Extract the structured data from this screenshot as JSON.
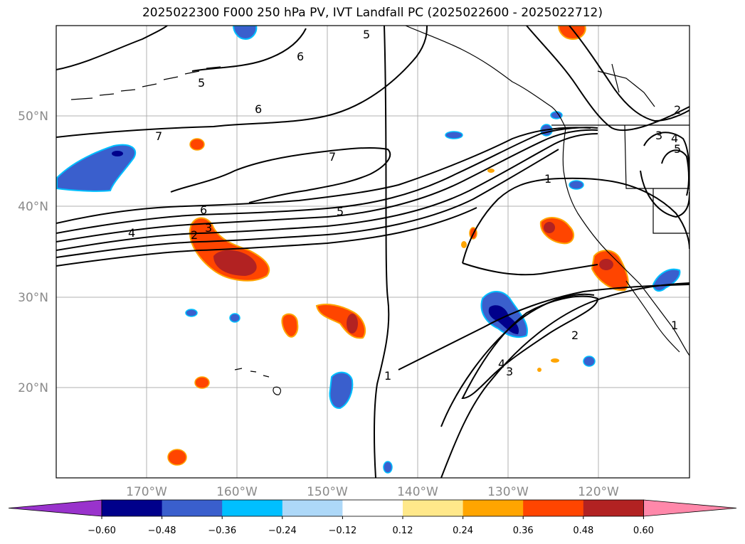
{
  "title": "2025022300 F000 250 hPa PV, IVT Landfall PC (2025022600 - 2025022712)",
  "lat_labels": [
    "50°N",
    "40°N",
    "30°N",
    "20°N"
  ],
  "lon_labels": [
    "170°W",
    "160°W",
    "150°W",
    "140°W",
    "130°W",
    "120°W"
  ],
  "colorbar": {
    "ticks": [
      "−0.60",
      "−0.48",
      "−0.36",
      "−0.24",
      "−0.12",
      "0.12",
      "0.24",
      "0.36",
      "0.48",
      "0.60"
    ],
    "colors": [
      "#9933cc",
      "#00008b",
      "#3a5fcd",
      "#00bfff",
      "#add8f8",
      "#ffffff",
      "#ffe88a",
      "#ffa500",
      "#ff4500",
      "#b22222",
      "#ff88aa"
    ]
  },
  "contour_labels": [
    "7",
    "6",
    "5",
    "6",
    "5",
    "7",
    "6",
    "5",
    "4",
    "3",
    "2",
    "1",
    "1",
    "2",
    "3",
    "4",
    "1",
    "2",
    "3",
    "4",
    "5"
  ]
}
